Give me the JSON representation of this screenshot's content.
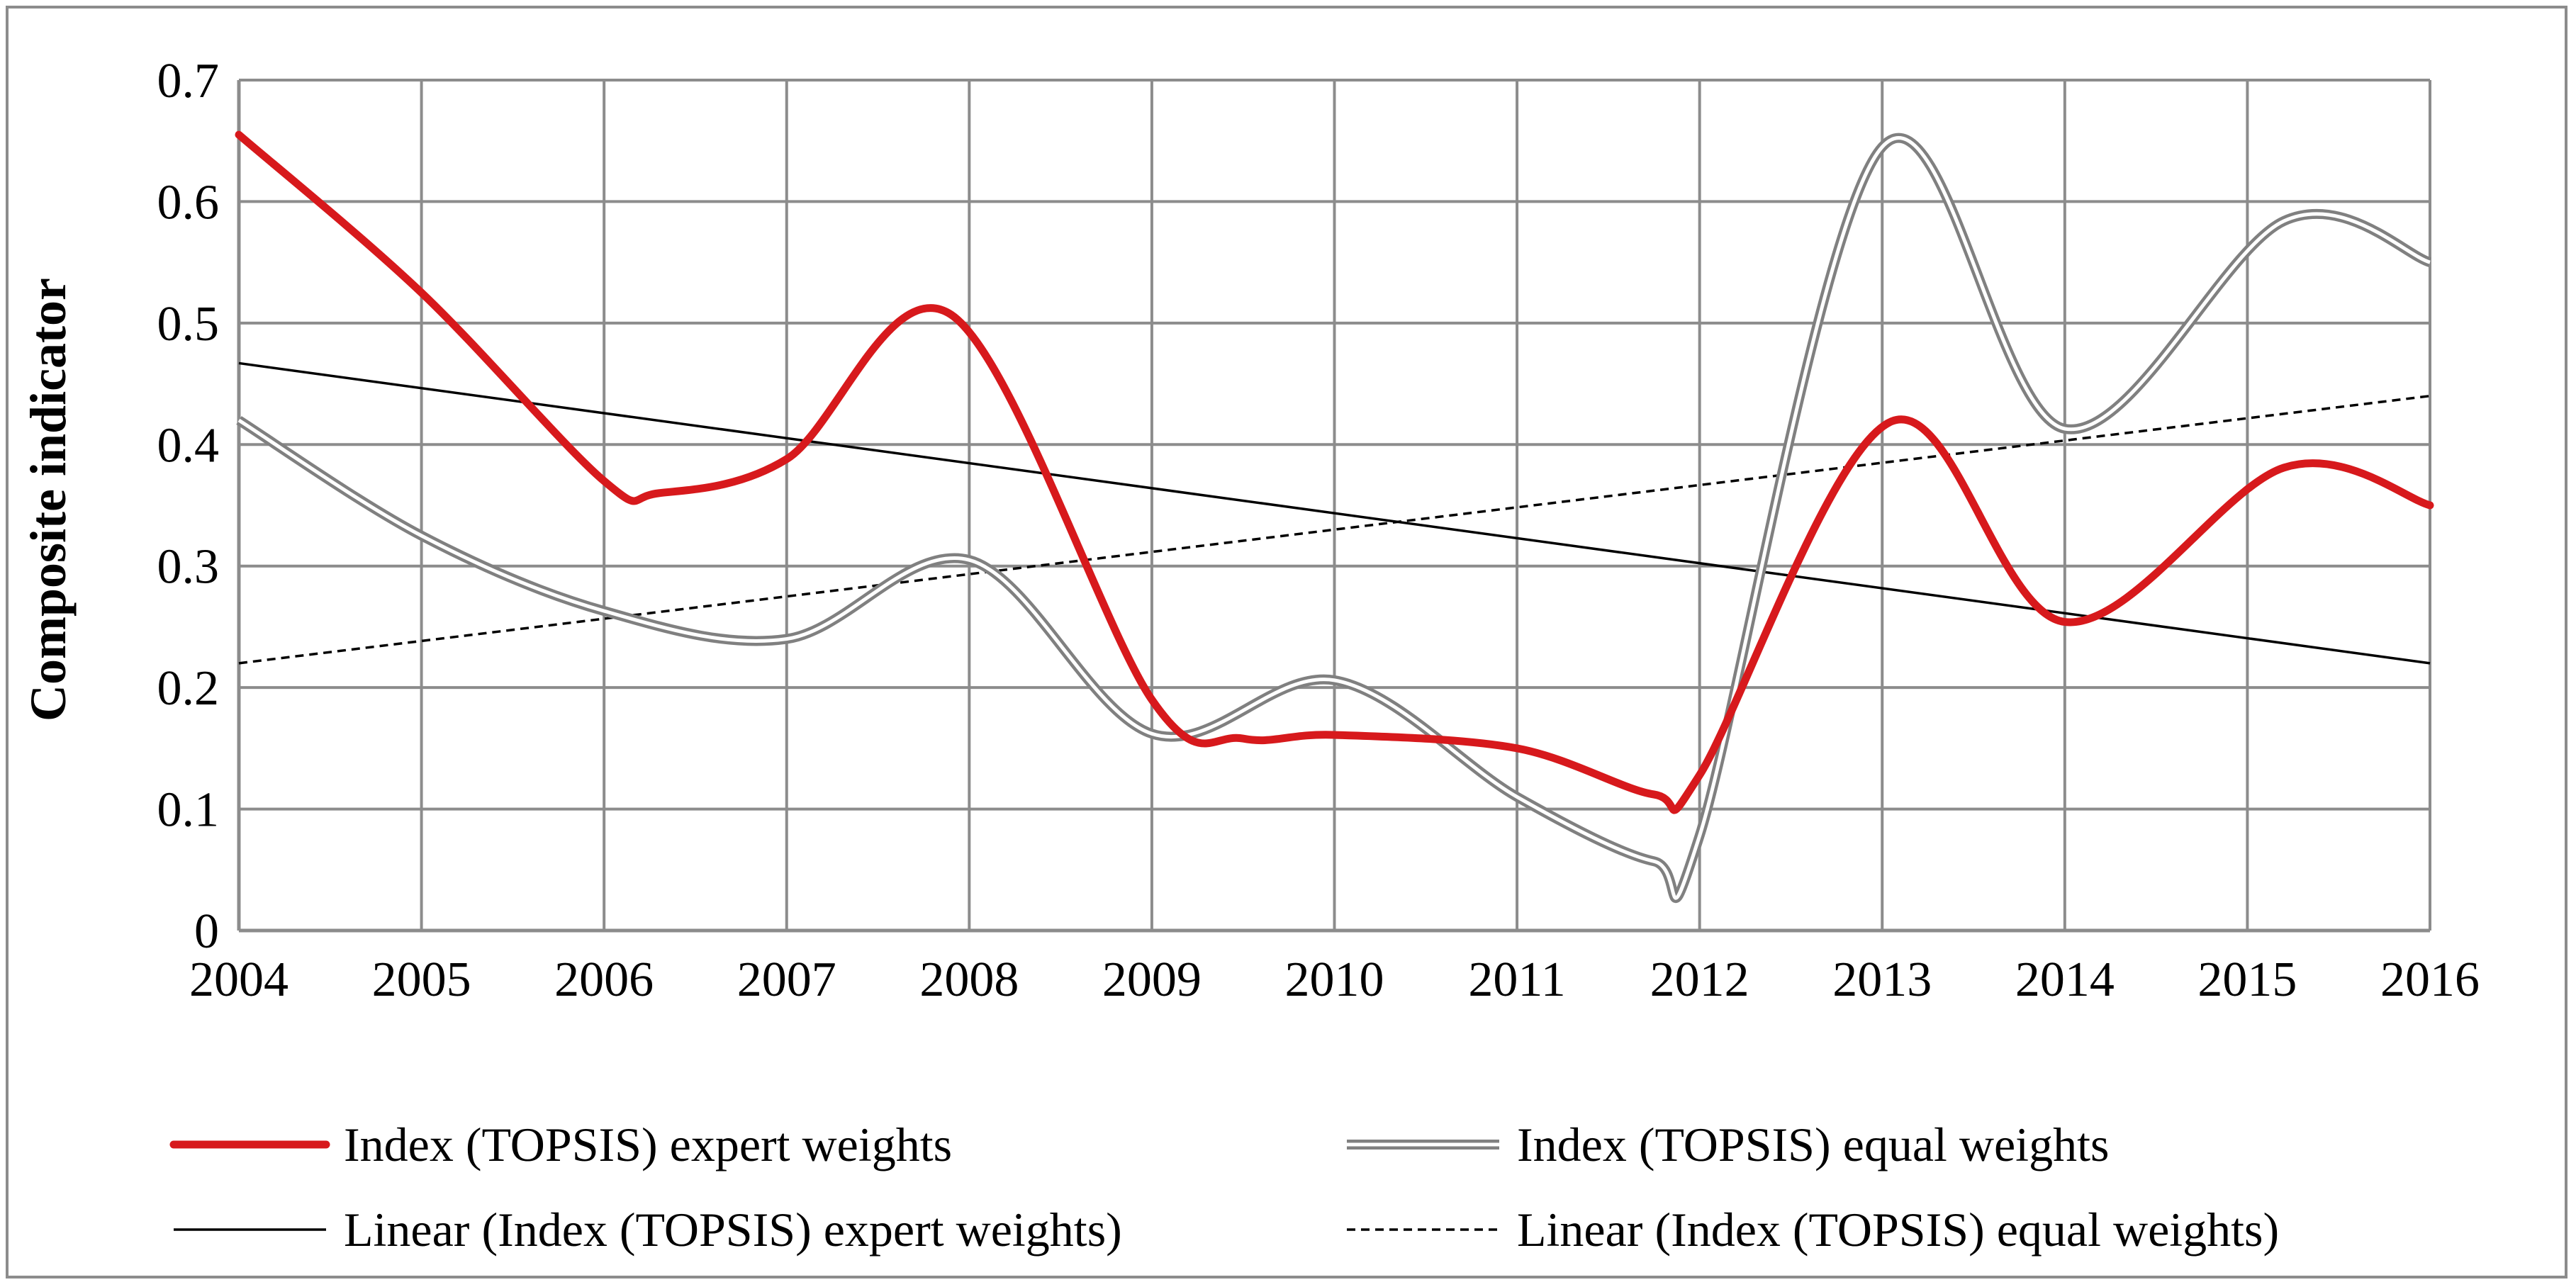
{
  "chart_data": {
    "type": "line",
    "title": "",
    "xlabel": "",
    "ylabel": "Composite indicator",
    "x": [
      2004,
      2005,
      2006,
      2007,
      2008,
      2009,
      2010,
      2011,
      2012,
      2013,
      2014,
      2015,
      2016
    ],
    "xlim": [
      2004,
      2016
    ],
    "ylim": [
      0,
      0.7
    ],
    "yticks": [
      0,
      0.1,
      0.2,
      0.3,
      0.4,
      0.5,
      0.6,
      0.7
    ],
    "ytick_labels": [
      "0",
      "0.1",
      "0.2",
      "0.3",
      "0.4",
      "0.5",
      "0.6",
      "0.7"
    ],
    "xtick_labels": [
      "2004",
      "2005",
      "2006",
      "2007",
      "2008",
      "2009",
      "2010",
      "2011",
      "2012",
      "2013",
      "2014",
      "2015",
      "2016"
    ],
    "grid": true,
    "legend_position": "bottom",
    "series": [
      {
        "name": "Index (TOPSIS) expert weights",
        "style": "thick-solid",
        "color": "#d7191c",
        "smooth": true,
        "x": [
          2004,
          2005,
          2006,
          2006.3,
          2007,
          2007.9,
          2009,
          2009.5,
          2010,
          2011,
          2011.75,
          2012,
          2013.05,
          2014,
          2015.2,
          2016
        ],
        "values": [
          0.655,
          0.525,
          0.37,
          0.36,
          0.388,
          0.507,
          0.19,
          0.158,
          0.161,
          0.15,
          0.112,
          0.128,
          0.419,
          0.254,
          0.381,
          0.35
        ]
      },
      {
        "name": "Index (TOPSIS) equal weights",
        "style": "double-line",
        "color": "#808080",
        "smooth": true,
        "x": [
          2004,
          2005,
          2006,
          2007,
          2008,
          2009,
          2010,
          2011,
          2011.75,
          2012,
          2013,
          2014,
          2015.2,
          2016
        ],
        "values": [
          0.42,
          0.325,
          0.263,
          0.24,
          0.305,
          0.162,
          0.206,
          0.11,
          0.057,
          0.078,
          0.645,
          0.413,
          0.584,
          0.55
        ]
      },
      {
        "name": "Linear (Index (TOPSIS) expert weights)",
        "style": "thin-solid",
        "color": "#000000",
        "smooth": false,
        "x": [
          2004,
          2016
        ],
        "values": [
          0.467,
          0.22
        ]
      },
      {
        "name": "Linear (Index (TOPSIS) equal weights)",
        "style": "dashed",
        "color": "#000000",
        "smooth": false,
        "x": [
          2004,
          2016
        ],
        "values": [
          0.22,
          0.44
        ]
      }
    ]
  }
}
